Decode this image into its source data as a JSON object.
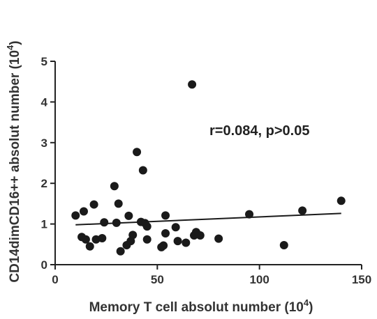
{
  "chart_data": {
    "type": "scatter",
    "title": "",
    "xlabel": "Memory T cell absolut number (10",
    "xlabel_sup": "4",
    "xlabel_close": ")",
    "ylabel": "CD14dimCD16++ absolut number (10",
    "ylabel_sup": "4",
    "ylabel_close": ")",
    "xlim": [
      0,
      150
    ],
    "ylim": [
      0,
      5
    ],
    "xticks": [
      0,
      50,
      100,
      150
    ],
    "yticks": [
      0,
      1,
      2,
      3,
      4,
      5
    ],
    "grid": false,
    "annotation": "r=0.084, p>0.05",
    "points": [
      {
        "x": 10,
        "y": 1.21
      },
      {
        "x": 13,
        "y": 0.68
      },
      {
        "x": 14,
        "y": 1.31
      },
      {
        "x": 15,
        "y": 0.62
      },
      {
        "x": 17,
        "y": 0.45
      },
      {
        "x": 19,
        "y": 1.48
      },
      {
        "x": 20,
        "y": 0.62
      },
      {
        "x": 23,
        "y": 0.65
      },
      {
        "x": 24,
        "y": 1.04
      },
      {
        "x": 29,
        "y": 1.93
      },
      {
        "x": 30,
        "y": 1.03
      },
      {
        "x": 31,
        "y": 1.5
      },
      {
        "x": 32,
        "y": 0.33
      },
      {
        "x": 35,
        "y": 0.48
      },
      {
        "x": 36,
        "y": 1.2
      },
      {
        "x": 37,
        "y": 0.58
      },
      {
        "x": 38,
        "y": 0.73
      },
      {
        "x": 40,
        "y": 2.77
      },
      {
        "x": 42,
        "y": 1.05
      },
      {
        "x": 43,
        "y": 2.32
      },
      {
        "x": 44,
        "y": 1.02
      },
      {
        "x": 45,
        "y": 0.62
      },
      {
        "x": 45,
        "y": 0.94
      },
      {
        "x": 52,
        "y": 0.43
      },
      {
        "x": 53,
        "y": 0.47
      },
      {
        "x": 54,
        "y": 0.77
      },
      {
        "x": 54,
        "y": 1.21
      },
      {
        "x": 59,
        "y": 0.92
      },
      {
        "x": 60,
        "y": 0.58
      },
      {
        "x": 64,
        "y": 0.54
      },
      {
        "x": 67,
        "y": 4.43
      },
      {
        "x": 68,
        "y": 0.72
      },
      {
        "x": 69,
        "y": 0.8
      },
      {
        "x": 71,
        "y": 0.72
      },
      {
        "x": 80,
        "y": 0.64
      },
      {
        "x": 95,
        "y": 1.24
      },
      {
        "x": 112,
        "y": 0.48
      },
      {
        "x": 121,
        "y": 1.33
      },
      {
        "x": 140,
        "y": 1.57
      }
    ],
    "fit_line": {
      "x": [
        10,
        140
      ],
      "y": [
        0.98,
        1.26
      ]
    }
  }
}
